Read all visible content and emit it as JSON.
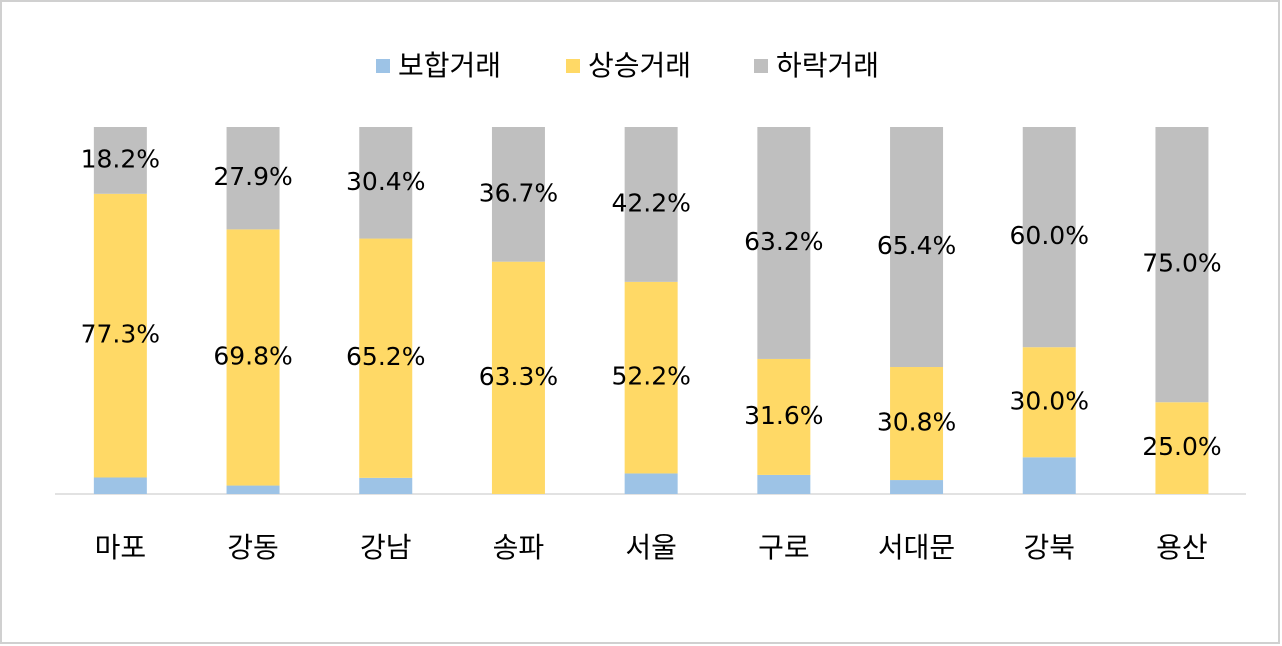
{
  "chart_data": {
    "type": "stacked-bar",
    "categories": [
      "마포",
      "강동",
      "강남",
      "송파",
      "서울",
      "구로",
      "서대문",
      "강북",
      "용산"
    ],
    "series": [
      {
        "name": "보합거래",
        "color": "#9dc3e6",
        "values": [
          4.5,
          2.3,
          4.4,
          0.0,
          5.6,
          5.2,
          3.8,
          10.0,
          0.0
        ]
      },
      {
        "name": "상승거래",
        "color": "#ffd966",
        "values": [
          77.3,
          69.8,
          65.2,
          63.3,
          52.2,
          31.6,
          30.8,
          30.0,
          25.0
        ],
        "value_labels": [
          "77.3%",
          "69.8%",
          "65.2%",
          "63.3%",
          "52.2%",
          "31.6%",
          "30.8%",
          "30.0%",
          "25.0%"
        ]
      },
      {
        "name": "하락거래",
        "color": "#bfbfbf",
        "values": [
          18.2,
          27.9,
          30.4,
          36.7,
          42.2,
          63.2,
          65.4,
          60.0,
          75.0
        ],
        "value_labels": [
          "18.2%",
          "27.9%",
          "30.4%",
          "36.7%",
          "42.2%",
          "63.2%",
          "65.4%",
          "60.0%",
          "75.0%"
        ]
      }
    ]
  }
}
